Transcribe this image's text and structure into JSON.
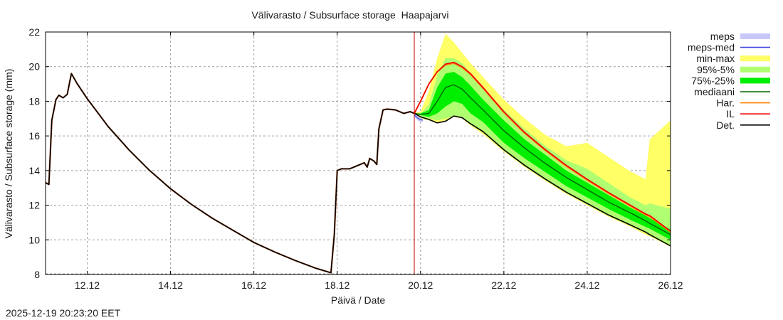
{
  "chart_data": {
    "type": "area",
    "title": "Välivarasto / Subsurface storage  Haapajarvi",
    "xlabel": "Päivä / Date",
    "ylabel": "Välivarasto / Subsurface storage (mm)",
    "timestamp": "2025-12-19 20:23:20 EET",
    "ylim": [
      8,
      22
    ],
    "yticks": [
      8,
      10,
      12,
      14,
      16,
      18,
      20,
      22
    ],
    "xlim_days": [
      11.0,
      26.0
    ],
    "xticks": [
      {
        "day": 12,
        "label": "12.12"
      },
      {
        "day": 14,
        "label": "14.12"
      },
      {
        "day": 16,
        "label": "16.12"
      },
      {
        "day": 18,
        "label": "18.12"
      },
      {
        "day": 20,
        "label": "20.12"
      },
      {
        "day": 22,
        "label": "22.12"
      },
      {
        "day": 24,
        "label": "24.12"
      },
      {
        "day": 26,
        "label": "26.12"
      }
    ],
    "grid": true,
    "forecast_start_day": 19.85,
    "legend_position": "right",
    "legend": [
      {
        "label": "meps",
        "type": "band",
        "color": "#c8c8f8"
      },
      {
        "label": "meps-med",
        "type": "line",
        "color": "#4040e0"
      },
      {
        "label": "min-max",
        "type": "band",
        "color": "#ffff66"
      },
      {
        "label": "95%-5%",
        "type": "band",
        "color": "#b0ff70"
      },
      {
        "label": "75%-25%",
        "type": "band",
        "color": "#00ee00"
      },
      {
        "label": "mediaani",
        "type": "line",
        "color": "#006400"
      },
      {
        "label": "Har.",
        "type": "line",
        "color": "#ff8000"
      },
      {
        "label": "IL",
        "type": "line",
        "color": "#ee0000"
      },
      {
        "label": "Det.",
        "type": "line",
        "color": "#000000"
      }
    ],
    "observed": {
      "name": "Det.",
      "x": [
        11.0,
        11.08,
        11.15,
        11.25,
        11.32,
        11.42,
        11.52,
        11.62,
        11.75,
        12.0,
        12.5,
        13.0,
        13.5,
        14.0,
        14.5,
        15.0,
        15.5,
        16.0,
        16.5,
        17.0,
        17.5,
        17.85,
        17.93,
        18.0,
        18.1,
        18.3,
        18.5,
        18.65,
        18.72,
        18.78,
        18.88,
        18.95,
        19.0,
        19.1,
        19.2,
        19.4,
        19.6,
        19.75,
        19.85
      ],
      "values": [
        13.3,
        13.2,
        16.9,
        18.1,
        18.35,
        18.2,
        18.4,
        19.6,
        19.05,
        18.15,
        16.55,
        15.2,
        14.0,
        12.95,
        12.05,
        11.25,
        10.55,
        9.85,
        9.3,
        8.8,
        8.35,
        8.1,
        10.3,
        14.0,
        14.1,
        14.1,
        14.3,
        14.45,
        14.2,
        14.7,
        14.55,
        14.35,
        16.4,
        17.5,
        17.55,
        17.5,
        17.3,
        17.4,
        17.3
      ]
    },
    "forecast": {
      "x": [
        19.85,
        20.0,
        20.2,
        20.4,
        20.6,
        20.8,
        21.0,
        21.2,
        21.5,
        22.0,
        22.5,
        23.0,
        23.5,
        24.0,
        24.5,
        25.0,
        25.4,
        25.5,
        26.0
      ],
      "min_max": {
        "upper": [
          17.35,
          17.4,
          18.6,
          20.5,
          21.9,
          21.4,
          20.8,
          20.2,
          19.4,
          18.1,
          17.0,
          16.05,
          15.4,
          15.6,
          14.8,
          14.0,
          13.5,
          15.8,
          16.9
        ],
        "lower": [
          17.2,
          17.0,
          16.9,
          16.75,
          16.9,
          17.1,
          17.0,
          16.6,
          16.1,
          15.1,
          14.2,
          13.4,
          12.65,
          12.0,
          11.35,
          10.8,
          10.3,
          10.2,
          9.6
        ]
      },
      "p95_p5": {
        "upper": [
          17.3,
          17.3,
          17.8,
          19.5,
          20.5,
          20.5,
          20.2,
          19.6,
          18.8,
          17.5,
          16.4,
          15.4,
          14.6,
          14.1,
          13.3,
          12.5,
          12.0,
          12.1,
          11.8
        ],
        "lower": [
          17.2,
          17.1,
          17.0,
          16.9,
          17.0,
          17.15,
          17.05,
          16.7,
          16.2,
          15.15,
          14.25,
          13.45,
          12.7,
          12.05,
          11.4,
          10.85,
          10.4,
          10.25,
          9.7
        ]
      },
      "p75_p25": {
        "upper": [
          17.3,
          17.3,
          17.5,
          18.8,
          19.6,
          19.7,
          19.4,
          18.9,
          18.1,
          16.9,
          15.8,
          14.9,
          14.0,
          13.3,
          12.6,
          11.9,
          11.4,
          11.25,
          10.6
        ],
        "lower": [
          17.25,
          17.2,
          17.1,
          17.3,
          17.7,
          18.0,
          17.85,
          17.3,
          16.8,
          15.6,
          14.7,
          13.9,
          13.1,
          12.45,
          11.8,
          11.2,
          10.75,
          10.65,
          10.0
        ]
      },
      "median": [
        17.3,
        17.25,
        17.3,
        18.0,
        18.8,
        18.95,
        18.7,
        18.2,
        17.5,
        16.3,
        15.3,
        14.4,
        13.6,
        12.9,
        12.2,
        11.6,
        11.1,
        10.95,
        10.3
      ],
      "IL": [
        17.3,
        18.0,
        19.0,
        19.7,
        20.15,
        20.25,
        20.0,
        19.6,
        18.8,
        17.4,
        16.2,
        15.2,
        14.3,
        13.5,
        12.75,
        12.05,
        11.5,
        11.4,
        10.5
      ],
      "Har": [
        17.3,
        18.0,
        19.0,
        19.7,
        20.1,
        20.2,
        19.95,
        19.55,
        18.75,
        17.35,
        16.15,
        15.15,
        14.25,
        13.45,
        12.7,
        12.0,
        11.45,
        11.35,
        10.45
      ],
      "Det": [
        17.3,
        17.1,
        16.95,
        16.75,
        16.85,
        17.15,
        17.05,
        16.7,
        16.25,
        15.2,
        14.3,
        13.5,
        12.75,
        12.1,
        11.45,
        10.9,
        10.45,
        10.3,
        9.65
      ],
      "meps": {
        "upper": [
          17.3,
          17.1,
          17.0
        ],
        "lower": [
          17.1,
          16.85,
          16.8
        ],
        "x": [
          19.85,
          19.95,
          20.05
        ]
      },
      "meps_med": {
        "x": [
          19.85,
          19.95,
          20.05
        ],
        "values": [
          17.2,
          17.0,
          16.9
        ]
      }
    }
  }
}
